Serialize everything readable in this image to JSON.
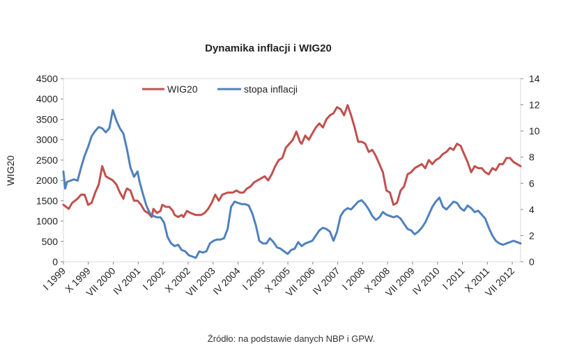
{
  "chart_data": {
    "type": "line",
    "title": "Dynamika inflacji i WIG20",
    "ylabel_left": "WIG20",
    "ylim_left": [
      0,
      4500
    ],
    "yticks_left": [
      0,
      500,
      1000,
      1500,
      2000,
      2500,
      3000,
      3500,
      4000,
      4500
    ],
    "ylim_right": [
      0,
      14
    ],
    "yticks_right": [
      0,
      2,
      4,
      6,
      8,
      10,
      12,
      14
    ],
    "x_range": [
      "I 1999",
      "XII 2012"
    ],
    "xtick_labels": [
      "I 1999",
      "X 1999",
      "VII 2000",
      "IV 2001",
      "I 2002",
      "X 2002",
      "VII 2003",
      "IV 2004",
      "I 2005",
      "X 2005",
      "VII 2006",
      "IV 2007",
      "I 2008",
      "X 2008",
      "VII 2009",
      "IV 2010",
      "I 2011",
      "X 2011",
      "VII 2012"
    ],
    "legend": {
      "placement": "top-left"
    },
    "grid": false,
    "series": [
      {
        "name": "WIG20",
        "axis": "left",
        "color": "#c0504d",
        "values": [
          [
            0,
            1400
          ],
          [
            3,
            1300
          ],
          [
            5,
            1450
          ],
          [
            8,
            1550
          ],
          [
            10,
            1650
          ],
          [
            12,
            1650
          ],
          [
            14,
            1400
          ],
          [
            16,
            1450
          ],
          [
            18,
            1700
          ],
          [
            20,
            1900
          ],
          [
            22,
            2350
          ],
          [
            24,
            2100
          ],
          [
            26,
            2050
          ],
          [
            28,
            2000
          ],
          [
            30,
            1900
          ],
          [
            32,
            1700
          ],
          [
            34,
            1550
          ],
          [
            35,
            1700
          ],
          [
            36,
            1800
          ],
          [
            38,
            1750
          ],
          [
            40,
            1500
          ],
          [
            42,
            1500
          ],
          [
            44,
            1400
          ],
          [
            46,
            1250
          ],
          [
            48,
            1200
          ],
          [
            50,
            1100
          ],
          [
            51,
            1300
          ],
          [
            53,
            1200
          ],
          [
            55,
            1250
          ],
          [
            56,
            1400
          ],
          [
            58,
            1350
          ],
          [
            60,
            1350
          ],
          [
            62,
            1250
          ],
          [
            63,
            1150
          ],
          [
            65,
            1100
          ],
          [
            67,
            1150
          ],
          [
            68,
            1100
          ],
          [
            70,
            1250
          ],
          [
            72,
            1200
          ],
          [
            75,
            1150
          ],
          [
            78,
            1150
          ],
          [
            80,
            1200
          ],
          [
            82,
            1300
          ],
          [
            84,
            1450
          ],
          [
            86,
            1650
          ],
          [
            88,
            1500
          ],
          [
            90,
            1650
          ],
          [
            93,
            1700
          ],
          [
            96,
            1700
          ],
          [
            98,
            1750
          ],
          [
            100,
            1700
          ],
          [
            102,
            1700
          ],
          [
            104,
            1800
          ],
          [
            106,
            1850
          ],
          [
            108,
            1950
          ],
          [
            110,
            2000
          ],
          [
            112,
            2050
          ],
          [
            114,
            2100
          ],
          [
            116,
            2000
          ],
          [
            118,
            2150
          ],
          [
            120,
            2350
          ],
          [
            122,
            2500
          ],
          [
            124,
            2550
          ],
          [
            126,
            2800
          ],
          [
            128,
            2900
          ],
          [
            130,
            3000
          ],
          [
            132,
            3200
          ],
          [
            134,
            2950
          ],
          [
            135,
            2900
          ],
          [
            137,
            3100
          ],
          [
            139,
            3000
          ],
          [
            141,
            3150
          ],
          [
            143,
            3300
          ],
          [
            145,
            3400
          ],
          [
            147,
            3300
          ],
          [
            149,
            3500
          ],
          [
            151,
            3600
          ],
          [
            153,
            3650
          ],
          [
            155,
            3800
          ],
          [
            157,
            3750
          ],
          [
            159,
            3600
          ],
          [
            161,
            3850
          ],
          [
            163,
            3600
          ],
          [
            165,
            3300
          ],
          [
            167,
            2950
          ],
          [
            169,
            2950
          ],
          [
            171,
            2900
          ],
          [
            173,
            2700
          ],
          [
            175,
            2750
          ],
          [
            177,
            2600
          ],
          [
            179,
            2400
          ],
          [
            181,
            2200
          ],
          [
            183,
            1750
          ],
          [
            185,
            1700
          ],
          [
            187,
            1400
          ],
          [
            189,
            1450
          ],
          [
            191,
            1750
          ],
          [
            193,
            1850
          ],
          [
            195,
            2150
          ],
          [
            197,
            2200
          ],
          [
            199,
            2300
          ],
          [
            201,
            2350
          ],
          [
            203,
            2400
          ],
          [
            205,
            2300
          ],
          [
            207,
            2500
          ],
          [
            209,
            2400
          ],
          [
            211,
            2500
          ],
          [
            213,
            2550
          ],
          [
            215,
            2650
          ],
          [
            217,
            2700
          ],
          [
            219,
            2800
          ],
          [
            221,
            2750
          ],
          [
            223,
            2900
          ],
          [
            225,
            2850
          ],
          [
            227,
            2650
          ],
          [
            229,
            2450
          ],
          [
            231,
            2200
          ],
          [
            233,
            2350
          ],
          [
            235,
            2300
          ],
          [
            237,
            2300
          ],
          [
            239,
            2200
          ],
          [
            241,
            2150
          ],
          [
            243,
            2300
          ],
          [
            245,
            2250
          ],
          [
            247,
            2400
          ],
          [
            249,
            2400
          ],
          [
            251,
            2550
          ],
          [
            253,
            2550
          ],
          [
            255,
            2450
          ],
          [
            257,
            2400
          ],
          [
            259,
            2350
          ]
        ]
      },
      {
        "name": "stopa inflacji",
        "axis": "right",
        "color": "#4f81bd",
        "values": [
          [
            0,
            6.9
          ],
          [
            1,
            5.6
          ],
          [
            2,
            6.1
          ],
          [
            4,
            6.2
          ],
          [
            6,
            6.3
          ],
          [
            8,
            6.2
          ],
          [
            10,
            7.2
          ],
          [
            12,
            8.1
          ],
          [
            14,
            8.8
          ],
          [
            16,
            9.6
          ],
          [
            18,
            10.0
          ],
          [
            20,
            10.3
          ],
          [
            22,
            10.2
          ],
          [
            24,
            9.9
          ],
          [
            26,
            10.2
          ],
          [
            28,
            11.6
          ],
          [
            30,
            10.8
          ],
          [
            32,
            10.2
          ],
          [
            34,
            9.8
          ],
          [
            36,
            8.6
          ],
          [
            38,
            7.2
          ],
          [
            40,
            6.5
          ],
          [
            42,
            6.9
          ],
          [
            43,
            6.2
          ],
          [
            45,
            5.2
          ],
          [
            47,
            4.3
          ],
          [
            49,
            3.7
          ],
          [
            51,
            3.5
          ],
          [
            53,
            3.4
          ],
          [
            55,
            3.4
          ],
          [
            57,
            3.0
          ],
          [
            59,
            1.9
          ],
          [
            61,
            1.4
          ],
          [
            63,
            1.2
          ],
          [
            65,
            1.3
          ],
          [
            67,
            0.9
          ],
          [
            69,
            0.8
          ],
          [
            71,
            0.5
          ],
          [
            73,
            0.4
          ],
          [
            75,
            0.3
          ],
          [
            77,
            0.8
          ],
          [
            79,
            0.7
          ],
          [
            81,
            0.8
          ],
          [
            83,
            1.4
          ],
          [
            85,
            1.6
          ],
          [
            87,
            1.7
          ],
          [
            89,
            1.7
          ],
          [
            91,
            1.8
          ],
          [
            93,
            2.5
          ],
          [
            95,
            4.2
          ],
          [
            97,
            4.6
          ],
          [
            99,
            4.5
          ],
          [
            101,
            4.4
          ],
          [
            103,
            4.4
          ],
          [
            105,
            4.3
          ],
          [
            107,
            3.7
          ],
          [
            109,
            2.8
          ],
          [
            111,
            1.6
          ],
          [
            113,
            1.4
          ],
          [
            115,
            1.4
          ],
          [
            117,
            1.8
          ],
          [
            119,
            1.5
          ],
          [
            121,
            1.1
          ],
          [
            123,
            1.0
          ],
          [
            125,
            0.8
          ],
          [
            127,
            0.6
          ],
          [
            129,
            0.9
          ],
          [
            131,
            1.0
          ],
          [
            133,
            1.5
          ],
          [
            135,
            1.2
          ],
          [
            137,
            1.4
          ],
          [
            139,
            1.5
          ],
          [
            141,
            1.6
          ],
          [
            143,
            2.0
          ],
          [
            145,
            2.4
          ],
          [
            147,
            2.6
          ],
          [
            149,
            2.5
          ],
          [
            151,
            2.3
          ],
          [
            153,
            1.6
          ],
          [
            155,
            2.3
          ],
          [
            157,
            3.5
          ],
          [
            159,
            3.9
          ],
          [
            161,
            4.1
          ],
          [
            163,
            4.0
          ],
          [
            165,
            4.3
          ],
          [
            167,
            4.6
          ],
          [
            169,
            4.7
          ],
          [
            171,
            4.4
          ],
          [
            173,
            4.0
          ],
          [
            175,
            3.5
          ],
          [
            177,
            3.2
          ],
          [
            179,
            3.4
          ],
          [
            181,
            3.8
          ],
          [
            183,
            3.6
          ],
          [
            185,
            3.5
          ],
          [
            187,
            3.4
          ],
          [
            189,
            3.5
          ],
          [
            191,
            3.3
          ],
          [
            193,
            2.9
          ],
          [
            195,
            2.5
          ],
          [
            197,
            2.4
          ],
          [
            199,
            2.1
          ],
          [
            201,
            2.3
          ],
          [
            203,
            2.6
          ],
          [
            205,
            3.0
          ],
          [
            207,
            3.6
          ],
          [
            209,
            4.2
          ],
          [
            211,
            4.6
          ],
          [
            213,
            4.9
          ],
          [
            215,
            4.2
          ],
          [
            217,
            4.0
          ],
          [
            219,
            4.3
          ],
          [
            221,
            4.6
          ],
          [
            223,
            4.5
          ],
          [
            225,
            4.1
          ],
          [
            227,
            3.9
          ],
          [
            229,
            4.3
          ],
          [
            231,
            4.1
          ],
          [
            233,
            3.8
          ],
          [
            235,
            3.9
          ],
          [
            237,
            3.6
          ],
          [
            239,
            3.3
          ],
          [
            241,
            2.6
          ],
          [
            243,
            2.0
          ],
          [
            245,
            1.6
          ],
          [
            247,
            1.4
          ],
          [
            249,
            1.3
          ],
          [
            251,
            1.4
          ],
          [
            253,
            1.5
          ],
          [
            255,
            1.6
          ],
          [
            257,
            1.5
          ],
          [
            259,
            1.4
          ]
        ]
      }
    ]
  },
  "source_note": "Źródło: na podstawie danych NBP i GPW."
}
